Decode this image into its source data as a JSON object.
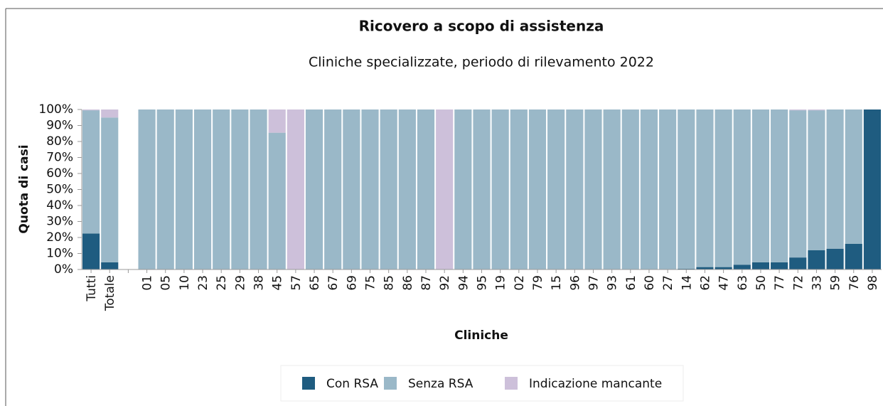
{
  "chart_data": {
    "type": "stacked_bar",
    "title": "Ricovero a scopo di assistenza",
    "subtitle": "Cliniche specializzate, periodo di rilevamento 2022",
    "x_label": "Cliniche",
    "y_label": "Quota di casi",
    "categories": [
      "Tutti",
      "Totale",
      null,
      "01",
      "05",
      "10",
      "23",
      "25",
      "29",
      "38",
      "45",
      "57",
      "65",
      "67",
      "69",
      "75",
      "85",
      "86",
      "87",
      "92",
      "94",
      "95",
      "19",
      "02",
      "79",
      "15",
      "96",
      "97",
      "93",
      "61",
      "60",
      "27",
      "14",
      "62",
      "47",
      "63",
      "50",
      "77",
      "72",
      "33",
      "59",
      "76",
      "98"
    ],
    "series": [
      {
        "name": "Con RSA",
        "color": "#1f5c80",
        "values": [
          22.5,
          4.5,
          null,
          0,
          0,
          0,
          0,
          0,
          0,
          0,
          0,
          0,
          0,
          0,
          0,
          0,
          0,
          0,
          0,
          0,
          0,
          0,
          0,
          0,
          0,
          0,
          0,
          0,
          0,
          0,
          0,
          0,
          0.5,
          1.5,
          1.5,
          3,
          4.5,
          4.5,
          7.5,
          12,
          13,
          16,
          100
        ]
      },
      {
        "name": "Senza RSA",
        "color": "#9ab8c8",
        "values": [
          77,
          90.5,
          null,
          100,
          100,
          100,
          100,
          100,
          100,
          100,
          85.5,
          0,
          100,
          100,
          100,
          100,
          100,
          100,
          100,
          0,
          100,
          100,
          100,
          100,
          100,
          100,
          100,
          100,
          100,
          100,
          100,
          100,
          99.5,
          98.5,
          98.5,
          97,
          95.5,
          95.5,
          92,
          87.5,
          87,
          84,
          0
        ]
      },
      {
        "name": "Indicazione mancante",
        "color": "#cdc0da",
        "values": [
          0.5,
          5,
          null,
          0,
          0,
          0,
          0,
          0,
          0,
          0,
          14.5,
          100,
          0,
          0,
          0,
          0,
          0,
          0,
          0,
          100,
          0,
          0,
          0,
          0,
          0,
          0,
          0,
          0,
          0,
          0,
          0,
          0,
          0,
          0,
          0,
          0,
          0,
          0,
          0.5,
          0.5,
          0,
          0,
          0
        ]
      }
    ],
    "ylim": [
      0,
      100
    ],
    "yticks": [
      {
        "value": 0,
        "label": "0%"
      },
      {
        "value": 10,
        "label": "10%"
      },
      {
        "value": 20,
        "label": "20%"
      },
      {
        "value": 30,
        "label": "30%"
      },
      {
        "value": 40,
        "label": "40%"
      },
      {
        "value": 50,
        "label": "50%"
      },
      {
        "value": 60,
        "label": "60%"
      },
      {
        "value": 70,
        "label": "70%"
      },
      {
        "value": 80,
        "label": "80%"
      },
      {
        "value": 90,
        "label": "90%"
      },
      {
        "value": 100,
        "label": "100%"
      }
    ]
  }
}
